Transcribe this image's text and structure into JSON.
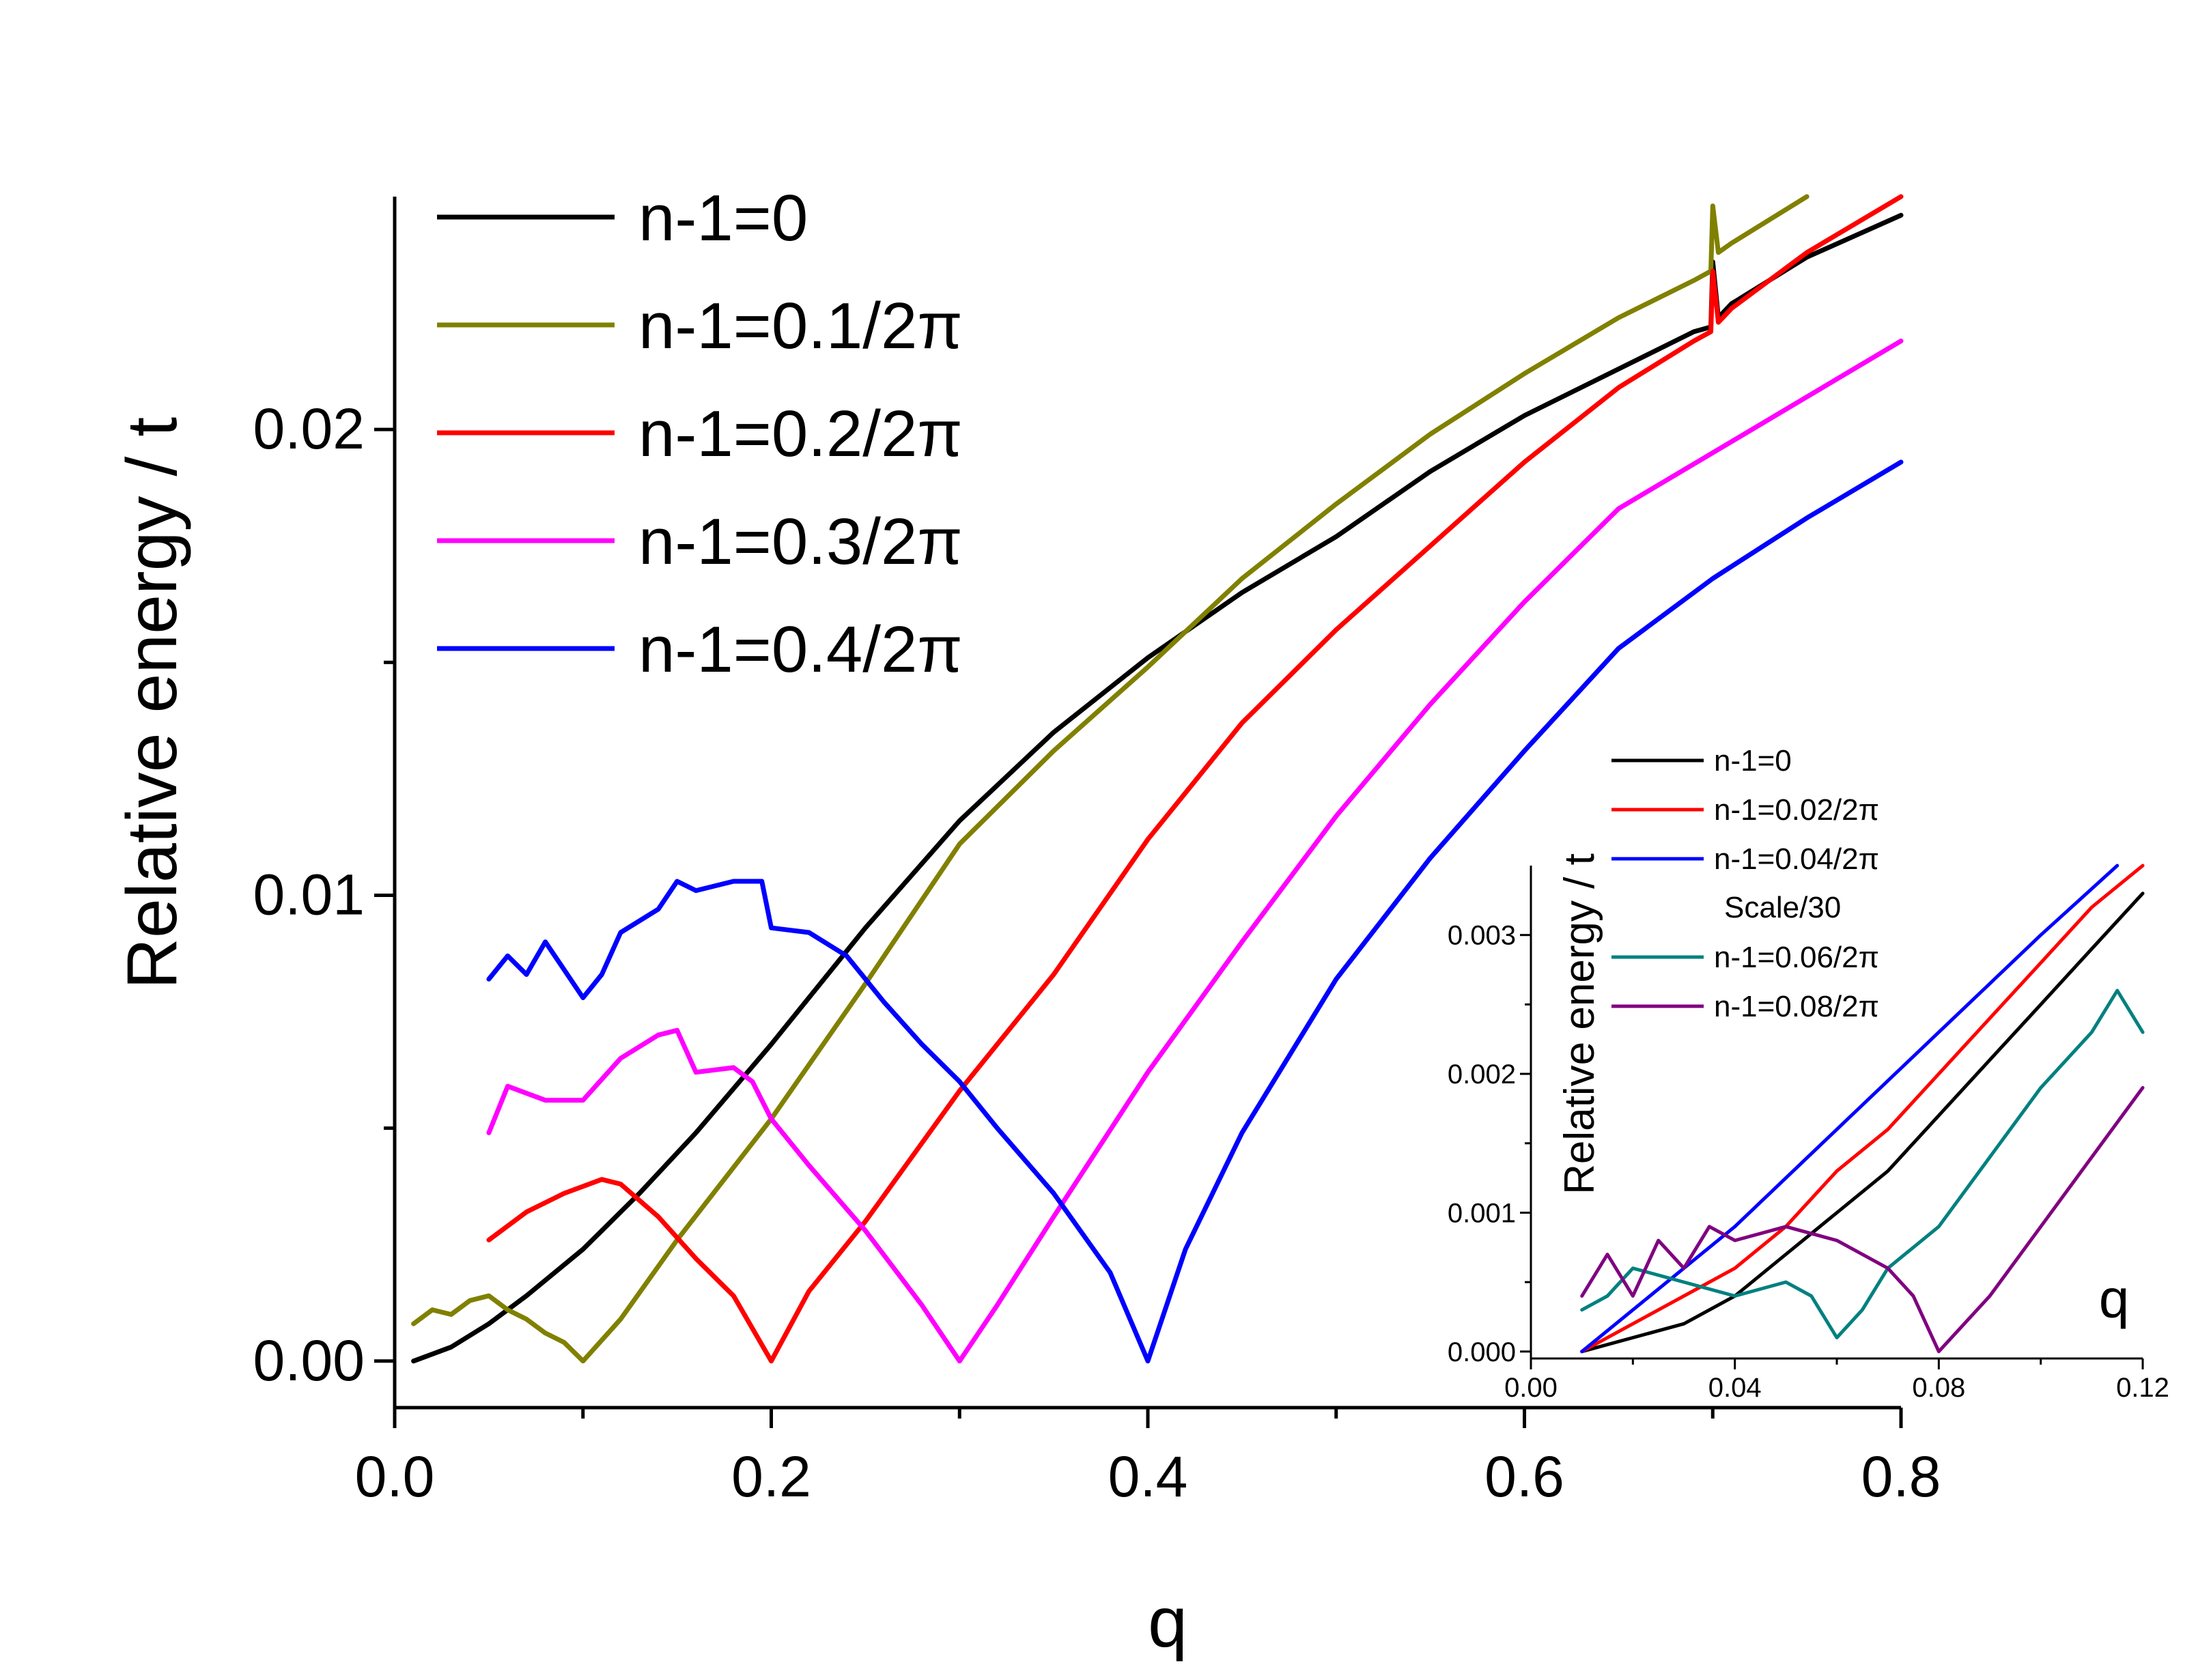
{
  "chart_data": [
    {
      "type": "line",
      "title": "",
      "xlabel": "q",
      "ylabel": "Relative energy / t",
      "xlim": [
        0.0,
        0.8
      ],
      "ylim": [
        -0.001,
        0.025
      ],
      "xticks": [
        0.0,
        0.2,
        0.4,
        0.6,
        0.8
      ],
      "xtick_labels": [
        "0.0",
        "0.2",
        "0.4",
        "0.6",
        "0.8"
      ],
      "yticks": [
        0.0,
        0.01,
        0.02
      ],
      "ytick_labels": [
        "0.00",
        "0.01",
        "0.02"
      ],
      "legend_position": "top-left",
      "series": [
        {
          "name": "n-1=0",
          "color": "#000000",
          "x": [
            0.01,
            0.03,
            0.05,
            0.07,
            0.1,
            0.13,
            0.16,
            0.2,
            0.25,
            0.3,
            0.35,
            0.4,
            0.45,
            0.5,
            0.55,
            0.6,
            0.65,
            0.69,
            0.699,
            0.7,
            0.703,
            0.71,
            0.75,
            0.8
          ],
          "y": [
            0.0,
            0.0003,
            0.0008,
            0.0014,
            0.0024,
            0.0036,
            0.0049,
            0.0068,
            0.0093,
            0.0116,
            0.0135,
            0.0151,
            0.0165,
            0.0177,
            0.0191,
            0.0203,
            0.0213,
            0.0221,
            0.0222,
            0.0236,
            0.0224,
            0.0227,
            0.0237,
            0.0246
          ]
        },
        {
          "name": "n-1=0.1/2π",
          "color": "#808000",
          "x": [
            0.01,
            0.02,
            0.03,
            0.04,
            0.05,
            0.06,
            0.07,
            0.08,
            0.09,
            0.1,
            0.12,
            0.15,
            0.2,
            0.25,
            0.3,
            0.35,
            0.4,
            0.45,
            0.5,
            0.55,
            0.6,
            0.65,
            0.69,
            0.699,
            0.7,
            0.703,
            0.71,
            0.75
          ],
          "y": [
            0.0008,
            0.0011,
            0.001,
            0.0013,
            0.0014,
            0.0011,
            0.0009,
            0.0006,
            0.0004,
            0.0,
            0.0009,
            0.0026,
            0.0052,
            0.0081,
            0.0111,
            0.0131,
            0.0149,
            0.0168,
            0.0184,
            0.0199,
            0.0212,
            0.0224,
            0.0232,
            0.0234,
            0.0248,
            0.0238,
            0.024,
            0.025
          ]
        },
        {
          "name": "n-1=0.2/2π",
          "color": "#ff0000",
          "x": [
            0.05,
            0.07,
            0.09,
            0.11,
            0.12,
            0.14,
            0.16,
            0.18,
            0.2,
            0.22,
            0.25,
            0.3,
            0.35,
            0.4,
            0.45,
            0.5,
            0.55,
            0.6,
            0.65,
            0.69,
            0.699,
            0.7,
            0.703,
            0.71,
            0.75,
            0.8
          ],
          "y": [
            0.0026,
            0.0032,
            0.0036,
            0.0039,
            0.0038,
            0.0031,
            0.0022,
            0.0014,
            0.0,
            0.0015,
            0.003,
            0.0058,
            0.0083,
            0.0112,
            0.0137,
            0.0157,
            0.0175,
            0.0193,
            0.0209,
            0.0219,
            0.0221,
            0.0234,
            0.0223,
            0.0226,
            0.0238,
            0.025
          ]
        },
        {
          "name": "n-1=0.3/2π",
          "color": "#ff00ff",
          "x": [
            0.05,
            0.06,
            0.08,
            0.1,
            0.12,
            0.14,
            0.15,
            0.16,
            0.18,
            0.19,
            0.2,
            0.22,
            0.25,
            0.28,
            0.3,
            0.32,
            0.35,
            0.4,
            0.45,
            0.5,
            0.55,
            0.6,
            0.65,
            0.7,
            0.75,
            0.8
          ],
          "y": [
            0.0049,
            0.0059,
            0.0056,
            0.0056,
            0.0065,
            0.007,
            0.0071,
            0.0062,
            0.0063,
            0.006,
            0.0052,
            0.0042,
            0.0028,
            0.0012,
            0.0,
            0.0012,
            0.0031,
            0.0062,
            0.009,
            0.0117,
            0.0141,
            0.0163,
            0.0183,
            0.0195,
            0.0207,
            0.0219
          ]
        },
        {
          "name": "n-1=0.4/2π",
          "color": "#0000ff",
          "x": [
            0.05,
            0.06,
            0.07,
            0.08,
            0.09,
            0.1,
            0.11,
            0.12,
            0.14,
            0.15,
            0.16,
            0.18,
            0.195,
            0.2,
            0.22,
            0.24,
            0.26,
            0.28,
            0.3,
            0.32,
            0.35,
            0.38,
            0.4,
            0.42,
            0.45,
            0.5,
            0.55,
            0.6,
            0.65,
            0.7,
            0.75,
            0.8
          ],
          "y": [
            0.0082,
            0.0087,
            0.0083,
            0.009,
            0.0084,
            0.0078,
            0.0083,
            0.0092,
            0.0097,
            0.0103,
            0.0101,
            0.0103,
            0.0103,
            0.0093,
            0.0092,
            0.0087,
            0.0077,
            0.0068,
            0.006,
            0.005,
            0.0036,
            0.0019,
            0.0,
            0.0024,
            0.0049,
            0.0082,
            0.0108,
            0.0131,
            0.0153,
            0.0168,
            0.0181,
            0.0193
          ]
        }
      ]
    },
    {
      "type": "line",
      "title": "",
      "xlabel": "q",
      "ylabel": "Relative energy / t",
      "xlim": [
        0.0,
        0.12
      ],
      "ylim": [
        -5e-05,
        0.0035
      ],
      "xticks": [
        0.0,
        0.04,
        0.08,
        0.12
      ],
      "xtick_labels": [
        "0.00",
        "0.04",
        "0.08",
        "0.12"
      ],
      "yticks": [
        0.0,
        0.001,
        0.002,
        0.003
      ],
      "ytick_labels": [
        "0.000",
        "0.001",
        "0.002",
        "0.003"
      ],
      "legend_position": "top-left",
      "legend_note": "Scale/30",
      "series": [
        {
          "name": "n-1=0",
          "color": "#000000",
          "x": [
            0.01,
            0.02,
            0.03,
            0.04,
            0.05,
            0.06,
            0.07,
            0.08,
            0.09,
            0.1,
            0.11,
            0.12
          ],
          "y": [
            0.0,
            0.0001,
            0.0002,
            0.0004,
            0.0007,
            0.001,
            0.0013,
            0.0017,
            0.0021,
            0.0025,
            0.0029,
            0.0033
          ]
        },
        {
          "name": "n-1=0.02/2π",
          "color": "#ff0000",
          "x": [
            0.01,
            0.02,
            0.03,
            0.04,
            0.05,
            0.06,
            0.07,
            0.08,
            0.09,
            0.1,
            0.11,
            0.12
          ],
          "y": [
            0.0,
            0.0002,
            0.0004,
            0.0006,
            0.0009,
            0.0013,
            0.0016,
            0.002,
            0.0024,
            0.0028,
            0.0032,
            0.0035
          ]
        },
        {
          "name": "n-1=0.04/2π",
          "color": "#0000ff",
          "x": [
            0.01,
            0.03,
            0.04,
            0.06,
            0.08,
            0.1,
            0.115
          ],
          "y": [
            0.0,
            0.0006,
            0.0009,
            0.0016,
            0.0023,
            0.003,
            0.0035
          ]
        },
        {
          "name": "n-1=0.06/2π",
          "color": "#008080",
          "x": [
            0.01,
            0.015,
            0.02,
            0.03,
            0.04,
            0.05,
            0.055,
            0.06,
            0.065,
            0.07,
            0.08,
            0.09,
            0.1,
            0.11,
            0.115,
            0.12
          ],
          "y": [
            0.0003,
            0.0004,
            0.0006,
            0.0005,
            0.0004,
            0.0005,
            0.0004,
            0.0001,
            0.0003,
            0.0006,
            0.0009,
            0.0014,
            0.0019,
            0.0023,
            0.0026,
            0.0023
          ]
        },
        {
          "name": "n-1=0.08/2π",
          "color": "#800080",
          "x": [
            0.01,
            0.015,
            0.02,
            0.025,
            0.03,
            0.035,
            0.04,
            0.05,
            0.06,
            0.07,
            0.075,
            0.08,
            0.09,
            0.1,
            0.11,
            0.12
          ],
          "y": [
            0.0004,
            0.0007,
            0.0004,
            0.0008,
            0.0006,
            0.0009,
            0.0008,
            0.0009,
            0.0008,
            0.0006,
            0.0004,
            0.0,
            0.0004,
            0.0009,
            0.0014,
            0.0019
          ]
        }
      ]
    }
  ]
}
